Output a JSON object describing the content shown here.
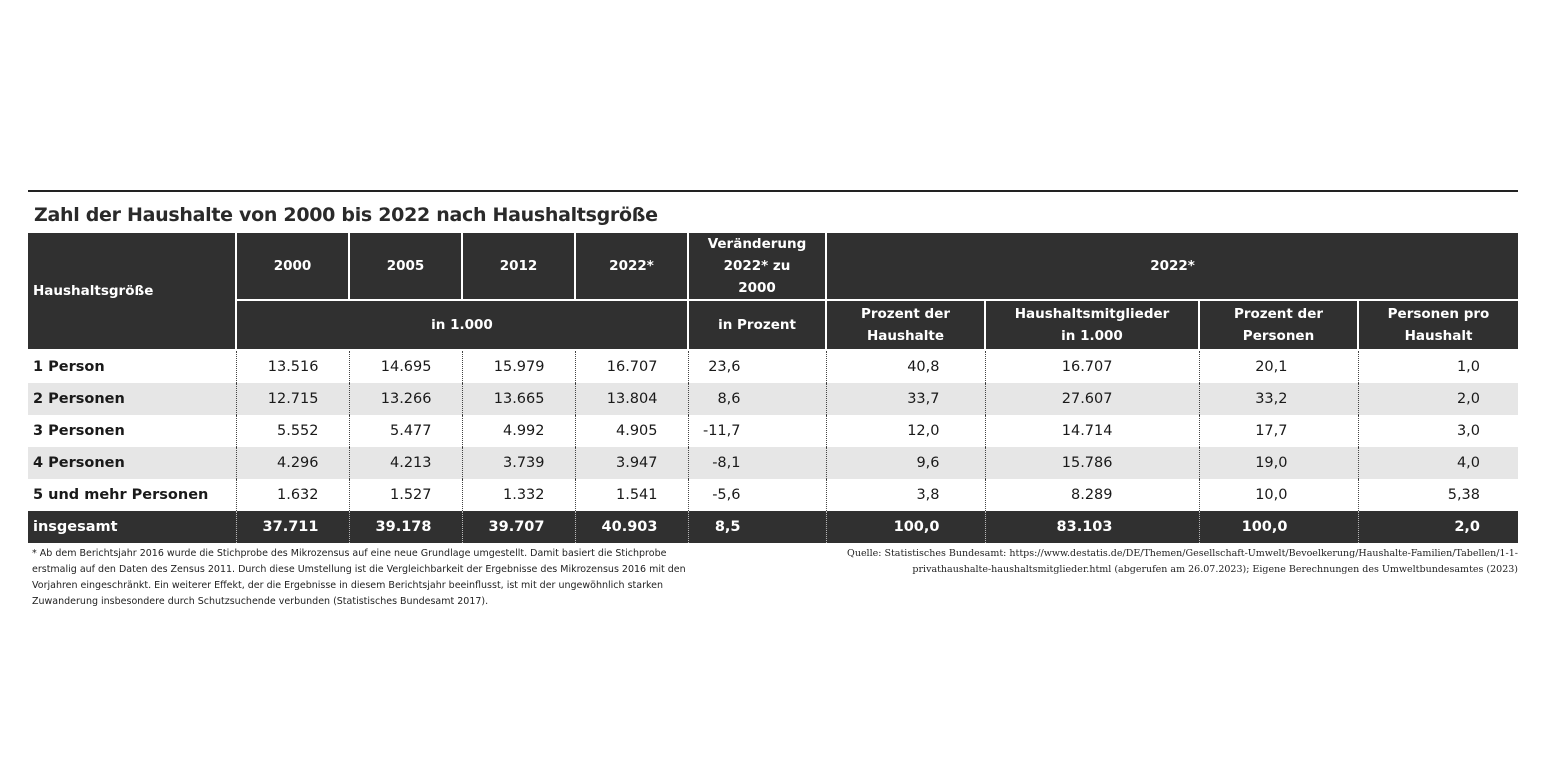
{
  "title": "Zahl der Haushalte von 2000 bis 2022 nach Haushaltsgröße",
  "chart_data": {
    "type": "table",
    "title": "Zahl der Haushalte von 2000 bis 2022 nach Haushaltsgröße",
    "header": {
      "row_label": "Haushaltsgröße",
      "years": [
        "2000",
        "2005",
        "2012",
        "2022*"
      ],
      "change": "Veränderung 2022* zu 2000",
      "group_2022": "2022*",
      "unit_thousand": "in 1.000",
      "unit_percent": "in Prozent",
      "pct_households": "Prozent der Haushalte",
      "members": "Haushaltsmitglieder in 1.000",
      "pct_persons": "Prozent der Personen",
      "persons_per_household": "Personen pro Haushalt"
    },
    "rows": [
      {
        "label": "1 Person",
        "cells": [
          "13.516",
          "14.695",
          "15.979",
          "16.707",
          "23,6",
          "40,8",
          "16.707",
          "20,1",
          "1,0"
        ]
      },
      {
        "label": "2 Personen",
        "cells": [
          "12.715",
          "13.266",
          "13.665",
          "13.804",
          "8,6",
          "33,7",
          "27.607",
          "33,2",
          "2,0"
        ]
      },
      {
        "label": "3 Personen",
        "cells": [
          "5.552",
          "5.477",
          "4.992",
          "4.905",
          "-11,7",
          "12,0",
          "14.714",
          "17,7",
          "3,0"
        ]
      },
      {
        "label": "4 Personen",
        "cells": [
          "4.296",
          "4.213",
          "3.739",
          "3.947",
          "-8,1",
          "9,6",
          "15.786",
          "19,0",
          "4,0"
        ]
      },
      {
        "label": "5 und mehr Personen",
        "cells": [
          "1.632",
          "1.527",
          "1.332",
          "1.541",
          "-5,6",
          "3,8",
          "8.289",
          "10,0",
          "5,38"
        ]
      }
    ],
    "total": {
      "label": "insgesamt",
      "cells": [
        "37.711",
        "39.178",
        "39.707",
        "40.903",
        "8,5",
        "100,0",
        "83.103",
        "100,0",
        "2,0"
      ]
    }
  },
  "footnote": "* Ab dem Berichtsjahr 2016 wurde die Stichprobe des Mikrozensus auf eine neue Grundlage umgestellt. Damit basiert die Stichprobe erstmalig auf den Daten des Zensus 2011. Durch diese Umstellung ist die Vergleichbarkeit der Ergebnisse des Mikrozensus 2016 mit den Vorjahren eingeschränkt. Ein weiterer Effekt, der die Ergebnisse in diesem Berichtsjahr beeinflusst, ist mit der ungewöhnlich starken Zuwanderung insbesondere durch Schutzsuchende verbunden (Statistisches Bundesamt 2017).",
  "source": "Quelle: Statistisches Bundesamt: https://www.destatis.de/DE/Themen/Gesellschaft-Umwelt/Bevoelkerung/Haushalte-Familien/Tabellen/1-1-privathaushalte-haushaltsmitglieder.html (abgerufen am 26.07.2023); Eigene Berechnungen des Umweltbundesamtes (2023)",
  "colors": {
    "header_bg": "#303030",
    "stripe": "#e6e6e6",
    "text": "#1a1a1a"
  }
}
